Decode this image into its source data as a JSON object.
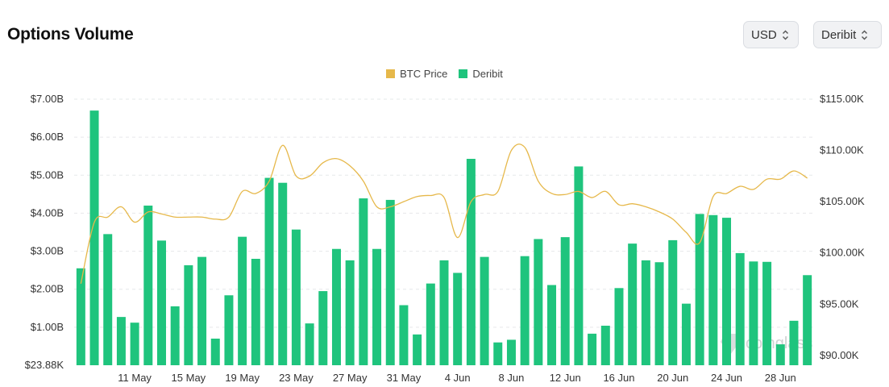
{
  "header": {
    "title": "Options Volume"
  },
  "controls": {
    "currency": "USD",
    "exchange": "Deribit"
  },
  "watermark": "coinglass",
  "colors": {
    "price": "#e6b84a",
    "volume": "#1fc47d",
    "grid": "#e6e8ea"
  },
  "chart_data": {
    "type": "bar",
    "legend": [
      {
        "name": "BTC Price",
        "color": "#e6b84a",
        "shape": "square"
      },
      {
        "name": "Deribit",
        "color": "#1fc47d",
        "shape": "square"
      }
    ],
    "legend_position": "top-center",
    "left_axis": {
      "min": 0.02388,
      "max": 7.0,
      "ticks": [
        "$23.88K",
        "$1.00B",
        "$2.00B",
        "$3.00B",
        "$4.00B",
        "$5.00B",
        "$6.00B",
        "$7.00B"
      ]
    },
    "right_axis": {
      "min": 87000,
      "max": 115000,
      "ticks": [
        "$90.00K",
        "$95.00K",
        "$100.00K",
        "$105.00K",
        "$110.00K",
        "$115.00K"
      ]
    },
    "x_ticks": [
      "11 May",
      "15 May",
      "19 May",
      "23 May",
      "27 May",
      "31 May",
      "4 Jun",
      "8 Jun",
      "12 Jun",
      "16 Jun",
      "20 Jun",
      "24 Jun",
      "28 Jun"
    ],
    "categories": [
      "7 May",
      "8 May",
      "9 May",
      "10 May",
      "11 May",
      "12 May",
      "13 May",
      "14 May",
      "15 May",
      "16 May",
      "17 May",
      "18 May",
      "19 May",
      "20 May",
      "21 May",
      "22 May",
      "23 May",
      "24 May",
      "25 May",
      "26 May",
      "27 May",
      "28 May",
      "29 May",
      "30 May",
      "31 May",
      "1 Jun",
      "2 Jun",
      "3 Jun",
      "4 Jun",
      "5 Jun",
      "6 Jun",
      "7 Jun",
      "8 Jun",
      "9 Jun",
      "10 Jun",
      "11 Jun",
      "12 Jun",
      "13 Jun",
      "14 Jun",
      "15 Jun",
      "16 Jun",
      "17 Jun",
      "18 Jun",
      "19 Jun",
      "20 Jun",
      "21 Jun",
      "22 Jun",
      "23 Jun",
      "24 Jun",
      "25 Jun",
      "26 Jun",
      "27 Jun",
      "28 Jun",
      "29 Jun",
      "30 Jun"
    ],
    "series": [
      {
        "name": "Deribit",
        "type": "bar",
        "unit": "USD billions",
        "values": [
          2.55,
          6.7,
          3.45,
          1.27,
          1.12,
          4.2,
          3.28,
          1.55,
          2.63,
          2.85,
          0.7,
          1.84,
          3.38,
          2.8,
          4.93,
          4.8,
          3.57,
          1.1,
          1.95,
          3.06,
          2.76,
          4.39,
          3.06,
          4.35,
          1.58,
          0.81,
          2.15,
          2.76,
          2.43,
          5.43,
          2.85,
          0.6,
          0.67,
          2.87,
          3.32,
          2.11,
          3.37,
          5.23,
          0.83,
          1.04,
          2.03,
          3.2,
          2.76,
          2.71,
          3.29,
          1.62,
          3.98,
          3.95,
          3.88,
          2.95,
          2.73,
          2.72,
          0.55,
          1.17,
          2.37
        ]
      },
      {
        "name": "BTC Price",
        "type": "line",
        "unit": "USD",
        "values": [
          97000,
          103000,
          103500,
          104500,
          103000,
          104000,
          103800,
          103500,
          103500,
          103500,
          103300,
          103500,
          106000,
          105800,
          107000,
          110500,
          107500,
          107500,
          108800,
          109200,
          108500,
          107000,
          104500,
          104500,
          105000,
          105500,
          105600,
          105400,
          101500,
          105000,
          105700,
          106000,
          110000,
          110300,
          107000,
          105800,
          105700,
          106000,
          105400,
          106000,
          104700,
          104800,
          104500,
          104000,
          103300,
          102000,
          101000,
          105500,
          105800,
          106500,
          106200,
          107200,
          107200,
          108000,
          107300
        ]
      }
    ]
  }
}
